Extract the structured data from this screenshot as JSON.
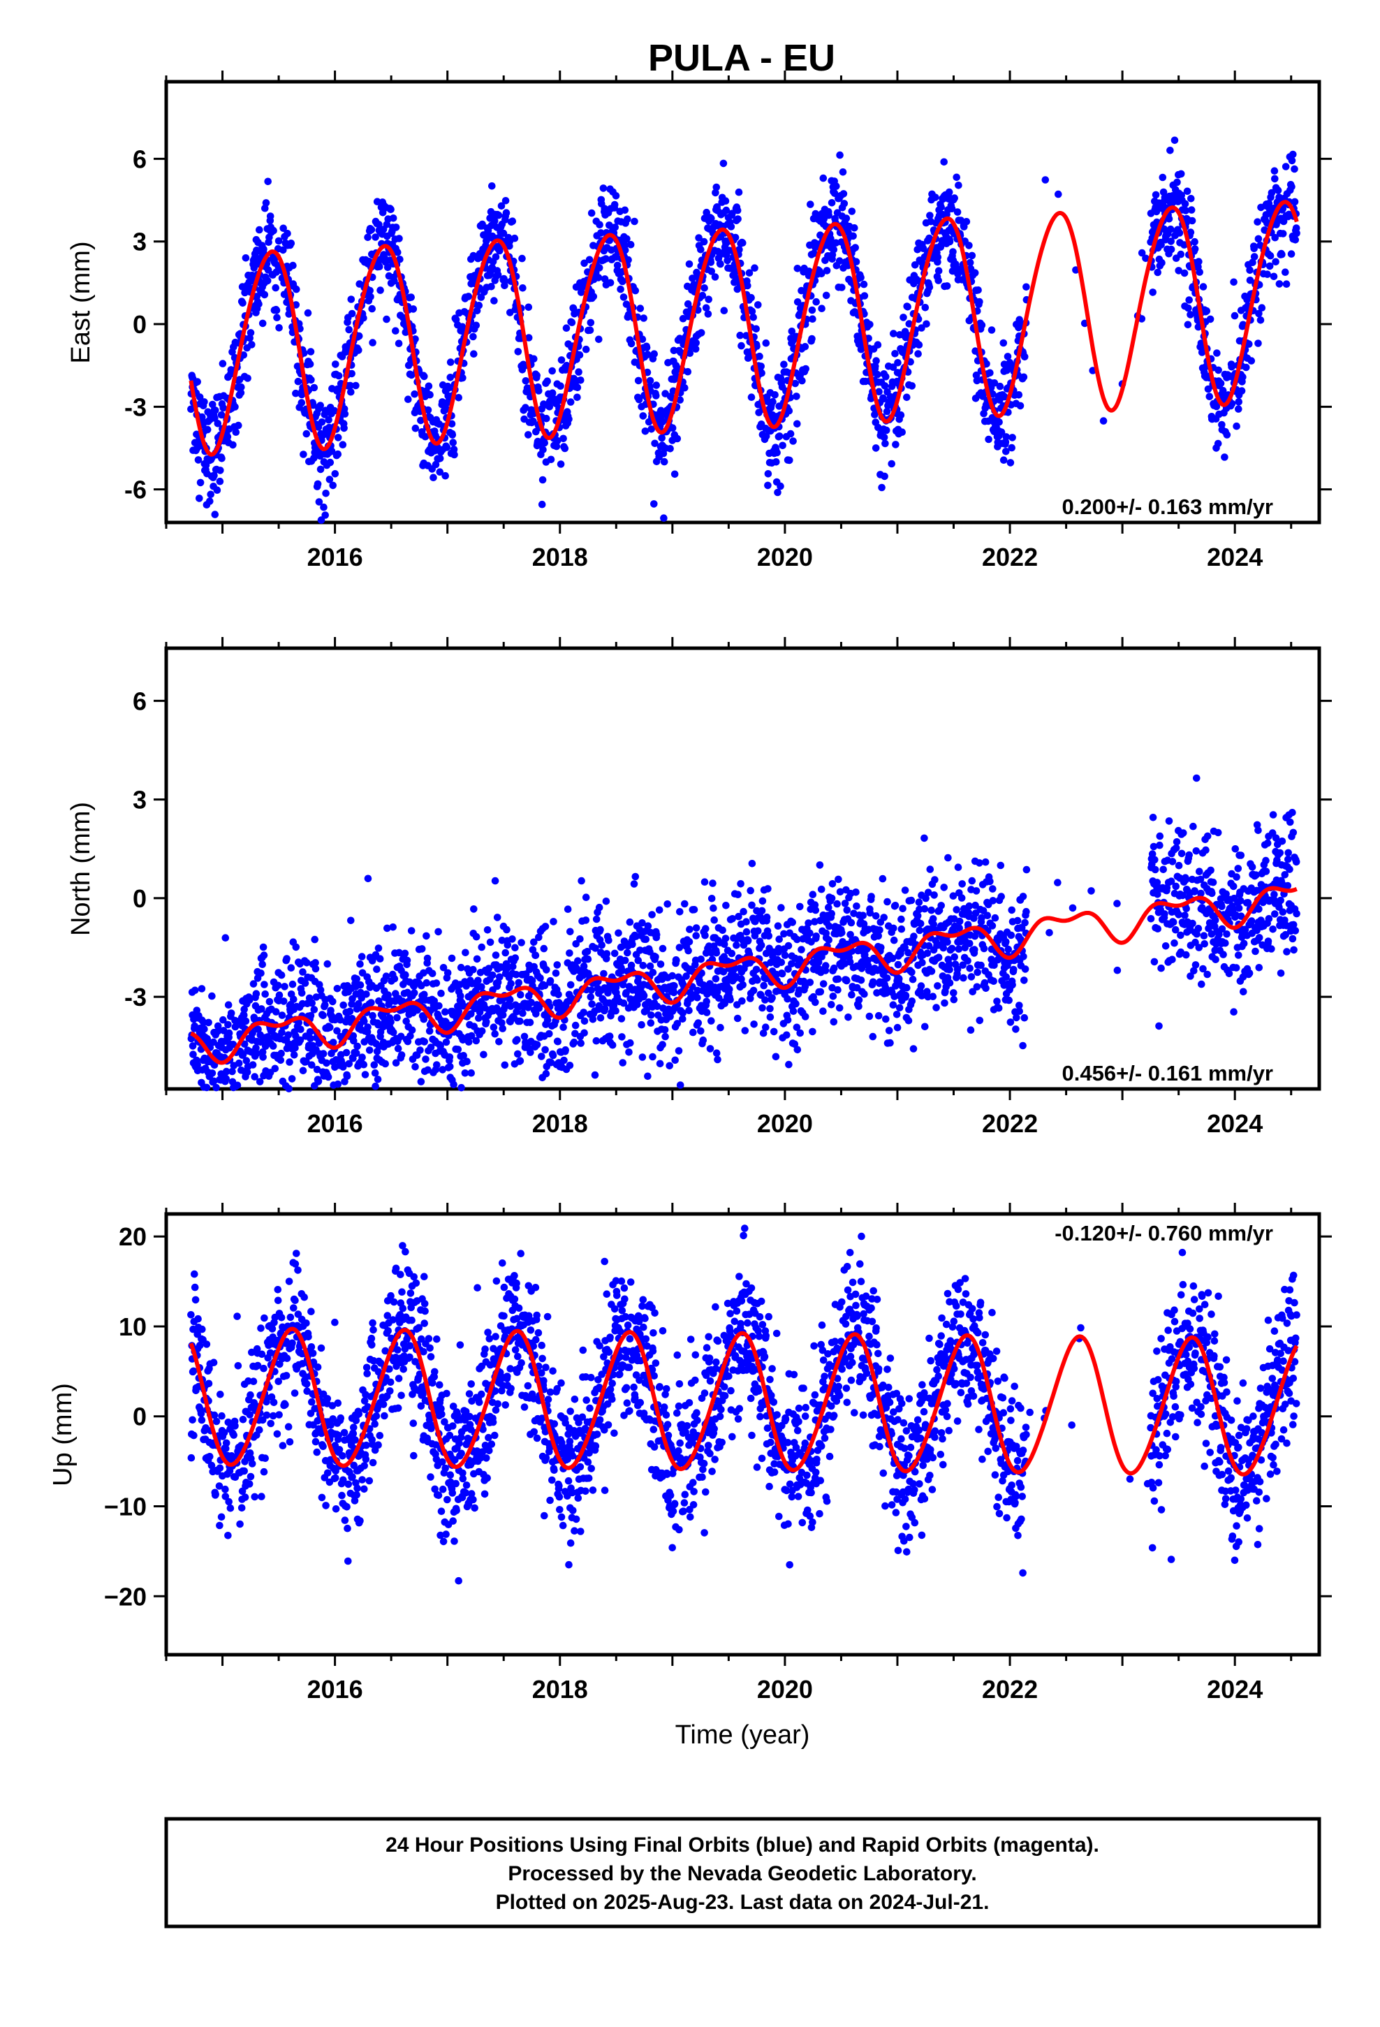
{
  "title": "PULA - EU",
  "colors": {
    "points": "#0000ff",
    "fit": "#ff0000",
    "frame": "#000000"
  },
  "chart_data": [
    {
      "type": "scatter",
      "panel": "east",
      "ylabel": "East (mm)",
      "xlim": [
        2014.5,
        2024.75
      ],
      "ylim": [
        -7.2,
        8.8
      ],
      "yticks": [
        "6",
        "3",
        "0",
        "-3",
        "-6"
      ],
      "xticks": [
        "2016",
        "2018",
        "2020",
        "2022",
        "2024"
      ],
      "rate_label": "0.200+/- 0.163 mm/yr",
      "rate_position": "bottom-right",
      "fit": {
        "offset": 0.0,
        "trend_mm_per_yr": 0.2,
        "annual_amp": 3.6,
        "annual_peak": 0.42,
        "semi_amp": 0.3,
        "semi_phase": 0.1,
        "x_start": 2014.72,
        "x_end": 2024.55
      },
      "scatter_sigma": 1.0,
      "gaps": [
        [
          2022.15,
          2023.25
        ]
      ]
    },
    {
      "type": "scatter",
      "panel": "north",
      "ylabel": "North (mm)",
      "xlim": [
        2014.5,
        2024.75
      ],
      "ylim": [
        -5.8,
        7.6
      ],
      "yticks": [
        "6",
        "3",
        "0",
        "-3"
      ],
      "xticks": [
        "2016",
        "2018",
        "2020",
        "2022",
        "2024"
      ],
      "rate_label": "0.456+/- 0.161 mm/yr",
      "rate_position": "bottom-right",
      "fit": {
        "offset": -2.25,
        "trend_mm_per_yr": 0.456,
        "annual_amp": 0.45,
        "annual_peak": 0.5,
        "semi_amp": 0.25,
        "semi_phase": 0.25,
        "x_start": 2014.72,
        "x_end": 2024.55
      },
      "scatter_sigma": 1.05,
      "gaps": [
        [
          2022.15,
          2023.25
        ]
      ]
    },
    {
      "type": "scatter",
      "panel": "up",
      "ylabel": "Up (mm)",
      "xlabel": "Time (year)",
      "xlim": [
        2014.5,
        2024.75
      ],
      "ylim": [
        -26.5,
        22.5
      ],
      "yticks": [
        "20",
        "10",
        "0",
        "−10",
        "−20"
      ],
      "xticks": [
        "2016",
        "2018",
        "2020",
        "2022",
        "2024"
      ],
      "rate_label": "-0.120+/- 0.760 mm/yr",
      "rate_position": "top-right",
      "fit": {
        "offset": 1.5,
        "trend_mm_per_yr": -0.12,
        "annual_amp": 7.5,
        "annual_peak": 0.6,
        "semi_amp": 0.6,
        "semi_phase": 0.2,
        "x_start": 2014.72,
        "x_end": 2024.55
      },
      "scatter_sigma": 4.2,
      "gaps": [
        [
          2022.15,
          2023.25
        ]
      ]
    }
  ],
  "footer": {
    "line1": "24 Hour Positions Using Final Orbits (blue) and Rapid Orbits (magenta).",
    "line2": "Processed by the Nevada Geodetic Laboratory.",
    "line3": "Plotted on 2025-Aug-23. Last data on 2024-Jul-21."
  }
}
